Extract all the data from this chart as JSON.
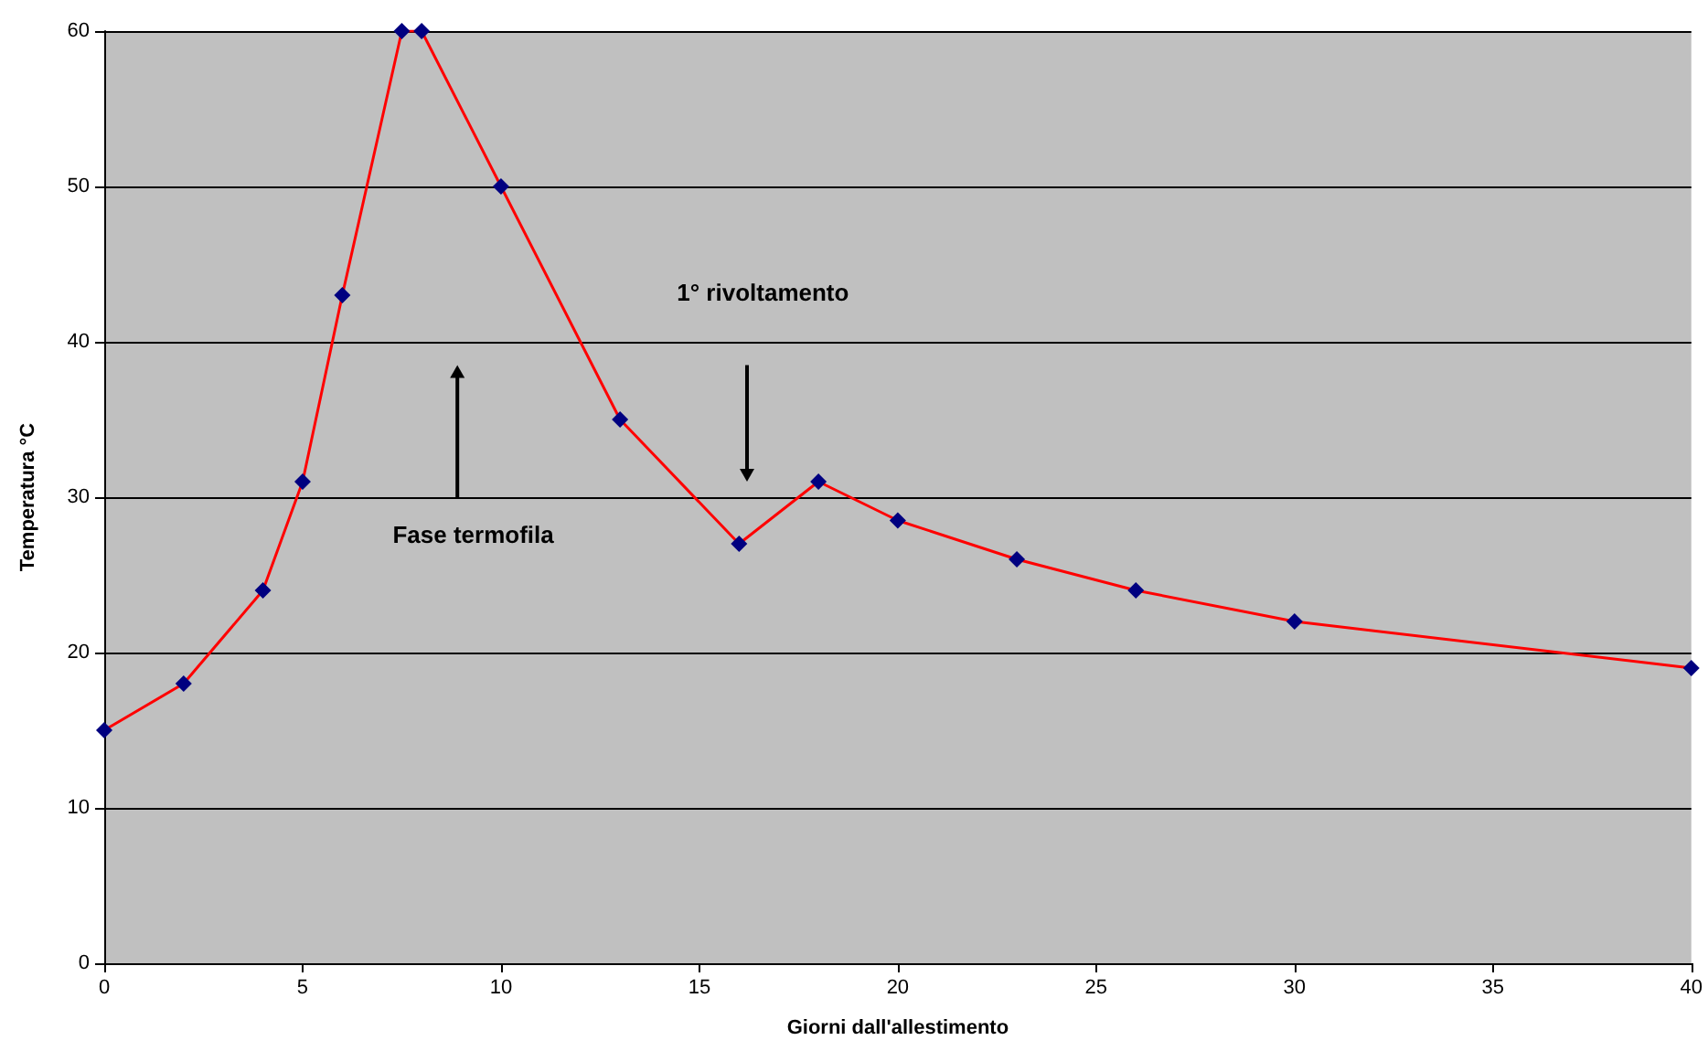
{
  "chart_data": {
    "type": "line",
    "xlabel": "Giorni dall'allestimento",
    "ylabel": "Temperatura °C",
    "x": [
      0,
      2,
      4,
      5,
      6,
      7.5,
      8,
      10,
      13,
      16,
      18,
      20,
      23,
      26,
      30,
      40
    ],
    "series": [
      {
        "color": "#ff0000",
        "values": [
          15,
          18,
          24,
          31,
          43,
          60,
          60,
          50,
          35,
          27,
          31,
          28.5,
          26,
          24,
          22,
          19
        ]
      }
    ],
    "xlim": [
      0,
      40
    ],
    "xticks": [
      0,
      5,
      10,
      15,
      20,
      25,
      30,
      35,
      40
    ],
    "ylim": [
      0,
      60
    ],
    "yticks": [
      0,
      10,
      20,
      30,
      40,
      50,
      60
    ],
    "grid": "y",
    "marker": "diamond",
    "line_style": "solid",
    "annotations": [
      "1° rivoltamento",
      "Fase termofila"
    ]
  }
}
